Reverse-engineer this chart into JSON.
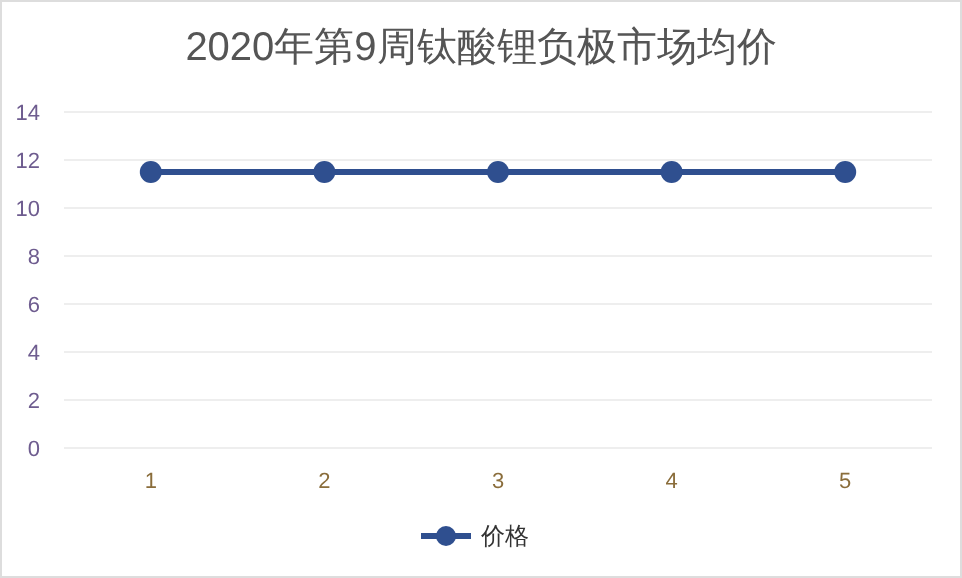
{
  "chart_data": {
    "type": "line",
    "title": "2020年第9周钛酸锂负极市场均价",
    "categories": [
      "1",
      "2",
      "3",
      "4",
      "5"
    ],
    "series": [
      {
        "name": "价格",
        "color": "#2f4f8f",
        "values": [
          11.5,
          11.5,
          11.5,
          11.5,
          11.5
        ]
      }
    ],
    "ylim": [
      0,
      14
    ],
    "yticks": [
      0,
      2,
      4,
      6,
      8,
      10,
      12,
      14
    ],
    "grid": "y",
    "legend": "bottom",
    "marker": "circle",
    "line_style": "solid"
  }
}
